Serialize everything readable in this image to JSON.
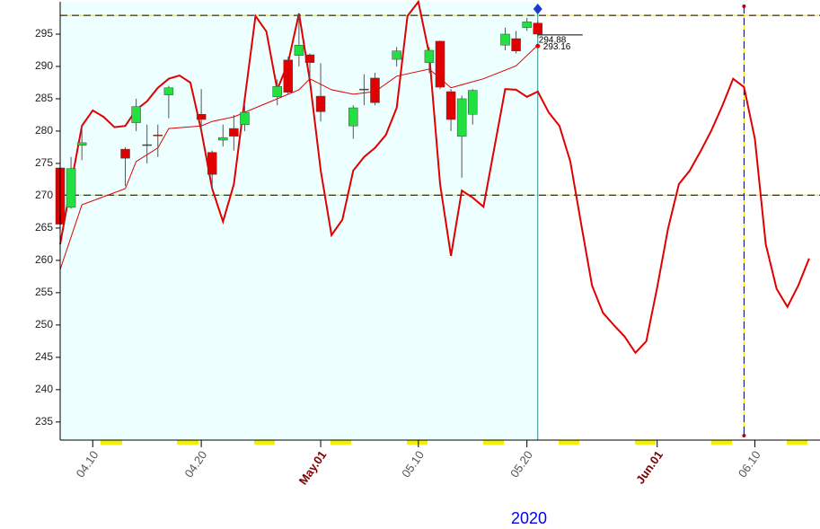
{
  "chart_data": {
    "type": "candlestick",
    "xlabel": "2020",
    "xlim": [
      "04.07",
      "06.16"
    ],
    "ylim": [
      232.2,
      300
    ],
    "yticks": [
      235,
      240,
      245,
      250,
      255,
      260,
      265,
      270,
      275,
      280,
      285,
      290,
      295
    ],
    "xticks": [
      "04.10",
      "04.20",
      {
        "value": "05.01",
        "label": "May.01"
      },
      "05.10",
      "05.20",
      {
        "value": "06.01",
        "label": "Jun.01"
      },
      "06.10"
    ],
    "up_color": "#22e040",
    "down_color": "#e00000",
    "x": [
      "04.07",
      "04.08",
      "04.09",
      "04.13",
      "04.14",
      "04.15",
      "04.16",
      "04.17",
      "04.20",
      "04.21",
      "04.22",
      "04.23",
      "04.24",
      "04.27",
      "04.28",
      "04.29",
      "04.30",
      "05.01",
      "05.04",
      "05.05",
      "05.06",
      "05.08",
      "05.11",
      "05.12",
      "05.13",
      "05.14",
      "05.15",
      "05.18",
      "05.19",
      "05.20",
      "05.21"
    ],
    "open": [
      274.3,
      268.2,
      277.8,
      277.2,
      281.3,
      277.9,
      279.4,
      285.6,
      282.6,
      276.7,
      278.6,
      280.4,
      281,
      285.3,
      291,
      291.7,
      291.8,
      285.4,
      280.8,
      286.5,
      288.2,
      291.1,
      290.6,
      293.9,
      286.1,
      279.2,
      282.6,
      293.3,
      294.3,
      296,
      296.7
    ],
    "high": [
      274.5,
      276,
      281,
      277.5,
      285,
      281,
      281,
      287,
      286.5,
      277,
      281,
      282.5,
      284,
      288,
      291.5,
      298,
      292,
      290.5,
      284,
      288.8,
      289,
      293,
      293,
      294,
      286.5,
      285.5,
      286.5,
      296,
      295.5,
      297.5,
      297
    ],
    "low": [
      262,
      268,
      275.5,
      271.5,
      280,
      275,
      276,
      282,
      280,
      271,
      277.6,
      277,
      280,
      284,
      285.7,
      290,
      288,
      281.5,
      278.8,
      284,
      284,
      290,
      289,
      286.5,
      280,
      272.8,
      281,
      292.5,
      292,
      295.5,
      294.5
    ],
    "close": [
      265.6,
      274.2,
      278.2,
      275.8,
      283.8,
      277.8,
      279.3,
      286.7,
      281.8,
      273.3,
      279,
      279.2,
      282.9,
      286.9,
      286,
      293.3,
      290.6,
      283,
      283.6,
      286.4,
      284.4,
      292.4,
      292.5,
      286.8,
      281.8,
      285,
      286.3,
      295,
      292.4,
      296.9,
      295
    ],
    "lines": [
      {
        "type": "line",
        "color": "#e00000",
        "width": 2,
        "x": [
          "04.07",
          "04.08",
          "04.09",
          "04.10",
          "04.11",
          "04.12",
          "04.13",
          "04.14",
          "04.15",
          "04.16",
          "04.17",
          "04.18",
          "04.19",
          "04.20",
          "04.21",
          "04.22",
          "04.23",
          "04.24",
          "04.25",
          "04.26",
          "04.27",
          "04.28",
          "04.29",
          "04.30",
          "05.01",
          "05.02",
          "05.03",
          "05.04",
          "05.05",
          "05.06",
          "05.07",
          "05.08",
          "05.09",
          "05.10",
          "05.11",
          "05.12",
          "05.13",
          "05.14",
          "05.15",
          "05.16",
          "05.17",
          "05.18",
          "05.19",
          "05.20",
          "05.21",
          "05.22",
          "05.23",
          "05.24",
          "05.25",
          "05.26",
          "05.27",
          "05.28",
          "05.29",
          "05.30",
          "05.31",
          "06.01",
          "06.02",
          "06.03",
          "06.04",
          "06.05",
          "06.06",
          "06.07",
          "06.08",
          "06.09",
          "06.10",
          "06.11",
          "06.12",
          "06.13",
          "06.14",
          "06.15"
        ],
        "values": [
          262.5,
          271.8,
          280.8,
          283.2,
          282.2,
          280.6,
          280.8,
          283.3,
          284.6,
          286.7,
          288.1,
          288.6,
          287.5,
          280.1,
          271.1,
          266.0,
          271.8,
          285.0,
          297.8,
          295.4,
          286.4,
          290.6,
          298.2,
          287.8,
          273.9,
          263.9,
          266.3,
          273.9,
          276.0,
          277.4,
          279.4,
          283.6,
          297.8,
          300.0,
          291.9,
          271.8,
          260.7,
          270.8,
          269.7,
          268.3,
          277.4,
          286.5,
          286.4,
          285.3,
          286.1,
          282.9,
          280.8,
          275.3,
          265.6,
          256.1,
          251.9,
          250.0,
          248.2,
          245.7,
          247.5,
          255.8,
          264.9,
          271.8,
          273.9,
          276.9,
          280.1,
          283.9,
          288.1,
          286.8,
          278.8,
          262.5,
          255.6,
          252.8,
          256.1,
          260.3
        ]
      },
      {
        "type": "line",
        "color": "#e00000",
        "width": 1,
        "x": [
          "04.07",
          "04.09",
          "04.13",
          "04.14",
          "04.16",
          "04.17",
          "04.20",
          "04.21",
          "04.23",
          "04.26",
          "04.29",
          "04.30",
          "05.02",
          "05.04",
          "05.06",
          "05.08",
          "05.11",
          "05.13",
          "05.16",
          "05.19",
          "05.21"
        ],
        "values": [
          258.6,
          268.6,
          271.1,
          275.3,
          277.4,
          280.4,
          280.8,
          281.5,
          282.2,
          284.3,
          286.4,
          288.1,
          286.4,
          285.7,
          286.1,
          288.5,
          289.6,
          286.7,
          288.1,
          290.1,
          293.3
        ]
      }
    ],
    "hlines": [
      297.9,
      270.1
    ],
    "vlines": [
      "06.09"
    ],
    "forecast_start": "05.21",
    "price_labels": [
      {
        "value": 294.88,
        "label": "294.88"
      },
      {
        "value": 293.16,
        "label": "293.16"
      }
    ]
  }
}
